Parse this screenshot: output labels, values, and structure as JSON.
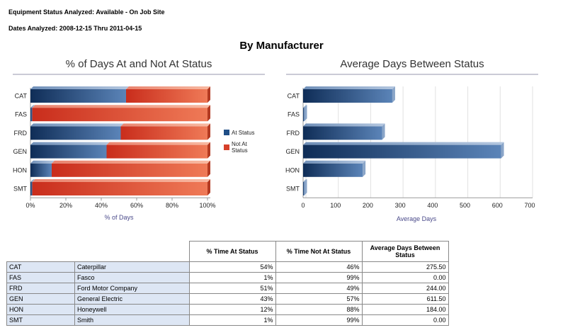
{
  "header": {
    "status_line": "Equipment Status Analyzed: Available - On Job Site",
    "dates_line": "Dates Analyzed: 2008-12-15 Thru 2011-04-15"
  },
  "main_title": "By Manufacturer",
  "colors": {
    "at_status": "#1f4e86",
    "not_at_status": "#d6402a",
    "avg_bar": "#1f4e86"
  },
  "chart_data": [
    {
      "type": "bar",
      "orientation": "horizontal",
      "stacked": true,
      "title": "% of Days At and Not At Status",
      "xlabel": "% of Days",
      "ylabel": "",
      "categories": [
        "CAT",
        "FAS",
        "FRD",
        "GEN",
        "HON",
        "SMT"
      ],
      "series": [
        {
          "name": "At Status",
          "values": [
            54,
            1,
            51,
            43,
            12,
            1
          ]
        },
        {
          "name": "Not At Status",
          "values": [
            46,
            99,
            49,
            57,
            88,
            99
          ]
        }
      ],
      "xlim": [
        0,
        100
      ],
      "xticks": [
        "0%",
        "20%",
        "40%",
        "60%",
        "80%",
        "100%"
      ],
      "legend": [
        "At Status",
        "Not At Status"
      ],
      "legend_position": "right"
    },
    {
      "type": "bar",
      "orientation": "horizontal",
      "title": "Average Days Between Status",
      "xlabel": "Average Days",
      "ylabel": "",
      "categories": [
        "CAT",
        "FAS",
        "FRD",
        "GEN",
        "HON",
        "SMT"
      ],
      "values": [
        275.5,
        0,
        244,
        611.5,
        184,
        0
      ],
      "xlim": [
        0,
        700
      ],
      "xticks": [
        "0",
        "100",
        "200",
        "300",
        "400",
        "500",
        "600",
        "700"
      ],
      "grid": true
    }
  ],
  "table": {
    "columns": [
      "% Time At Status",
      "% Time Not At Status",
      "Average Days Between Status"
    ],
    "rows": [
      {
        "code": "CAT",
        "name": "Caterpillar",
        "at": "54%",
        "not_at": "46%",
        "avg": "275.50"
      },
      {
        "code": "FAS",
        "name": "Fasco",
        "at": "1%",
        "not_at": "99%",
        "avg": "0.00"
      },
      {
        "code": "FRD",
        "name": "Ford Motor Company",
        "at": "51%",
        "not_at": "49%",
        "avg": "244.00"
      },
      {
        "code": "GEN",
        "name": "General Electric",
        "at": "43%",
        "not_at": "57%",
        "avg": "611.50"
      },
      {
        "code": "HON",
        "name": "Honeywell",
        "at": "12%",
        "not_at": "88%",
        "avg": "184.00"
      },
      {
        "code": "SMT",
        "name": "Smith",
        "at": "1%",
        "not_at": "99%",
        "avg": "0.00"
      }
    ]
  }
}
